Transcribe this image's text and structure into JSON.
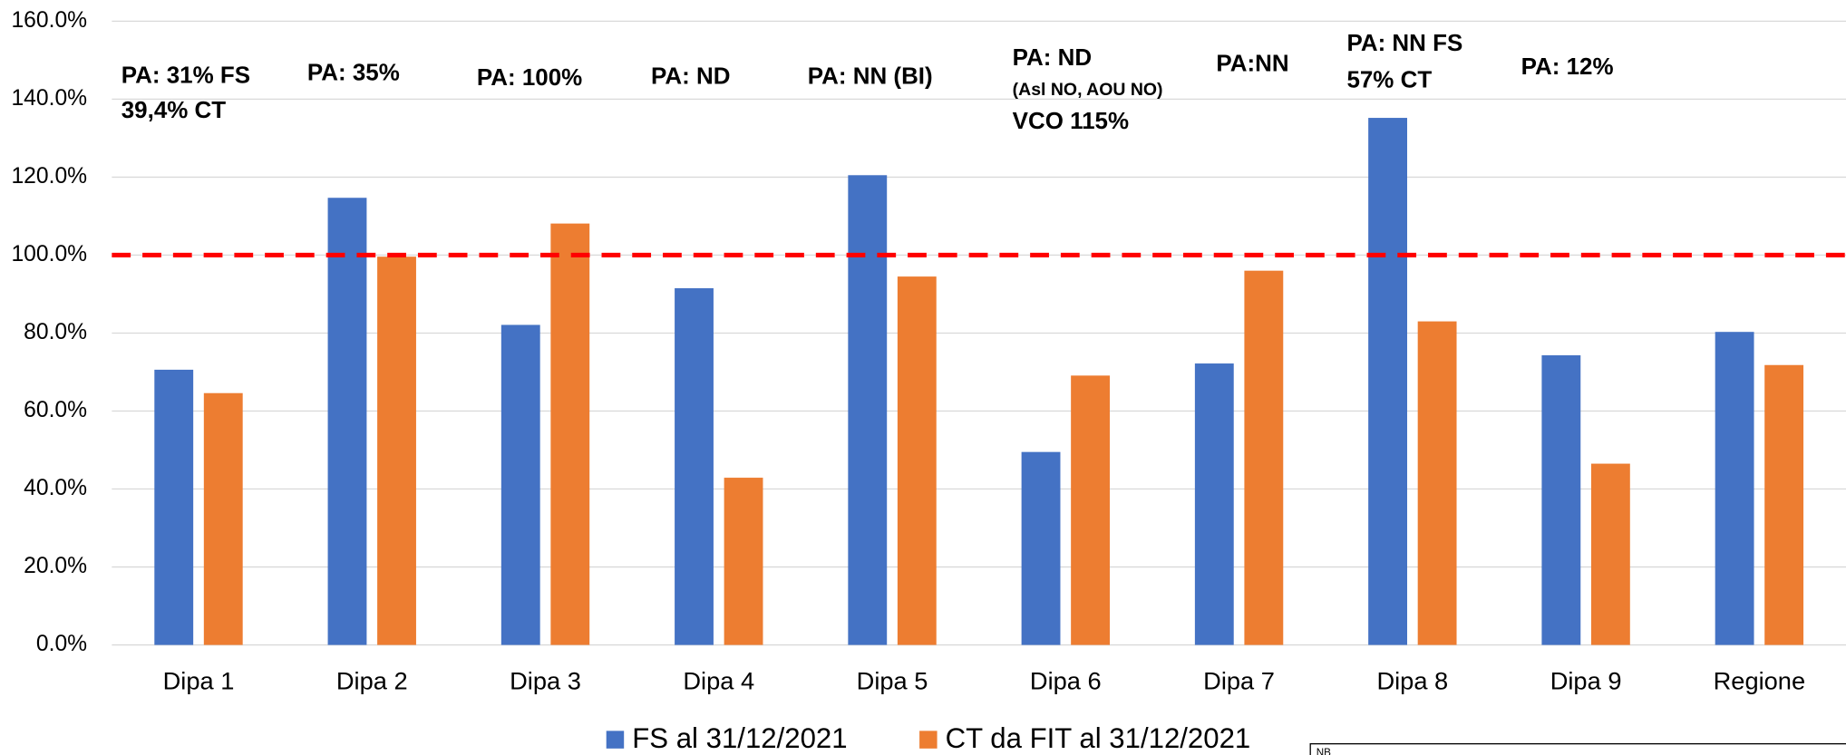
{
  "chart_data": {
    "type": "bar",
    "categories": [
      "Dipa 1",
      "Dipa 2",
      "Dipa 3",
      "Dipa 4",
      "Dipa 5",
      "Dipa 6",
      "Dipa 7",
      "Dipa 8",
      "Dipa 9",
      "Regione"
    ],
    "series": [
      {
        "name": "FS al 31/12/2021",
        "color": "#4472c4",
        "values": [
          70.6,
          114.7,
          82.1,
          91.5,
          120.5,
          49.5,
          72.2,
          135.2,
          74.3,
          80.3
        ]
      },
      {
        "name": "CT da FIT al 31/12/2021",
        "color": "#ed7d31",
        "values": [
          64.6,
          99.6,
          108.1,
          42.9,
          94.5,
          69.1,
          96.0,
          83.0,
          46.5,
          71.8
        ]
      }
    ],
    "ylim": [
      0,
      160
    ],
    "yticks": [
      {
        "value": 0,
        "label": "0.0%"
      },
      {
        "value": 20,
        "label": "20.0%"
      },
      {
        "value": 40,
        "label": "40.0%"
      },
      {
        "value": 60,
        "label": "60.0%"
      },
      {
        "value": 80,
        "label": "80.0%"
      },
      {
        "value": 100,
        "label": "100.0%"
      },
      {
        "value": 120,
        "label": "120.0%"
      },
      {
        "value": 140,
        "label": "140.0%"
      },
      {
        "value": 160,
        "label": "160.0%"
      }
    ],
    "grid": true,
    "reference_line": {
      "value": 100,
      "color": "#ff0000"
    },
    "annotations": [
      [
        "PA: 31% FS",
        "39,4% CT"
      ],
      [
        "PA: 35%"
      ],
      [
        "PA: 100%"
      ],
      [
        "PA: ND"
      ],
      [
        "PA: NN (BI)"
      ],
      [
        "PA: ND",
        "(Asl NO, AOU NO)",
        "VCO 115%"
      ],
      [
        "PA:NN"
      ],
      [
        "PA: NN FS",
        "57% CT"
      ],
      [
        "PA: 12%"
      ]
    ],
    "legend": "bottom",
    "note": "NB"
  }
}
